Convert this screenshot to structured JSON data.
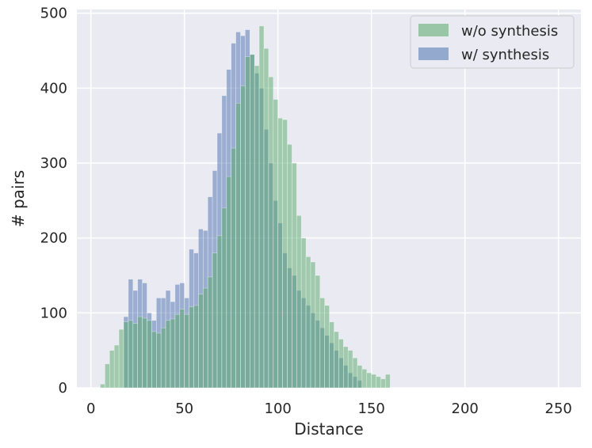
{
  "chart_data": {
    "type": "bar",
    "subtype": "overlapping-histogram",
    "xlabel": "Distance",
    "ylabel": "# pairs",
    "xlim": [
      -7.5,
      262
    ],
    "ylim": [
      0,
      505
    ],
    "xticks": [
      0,
      50,
      100,
      150,
      200,
      250
    ],
    "yticks": [
      0,
      100,
      200,
      300,
      400,
      500
    ],
    "grid": true,
    "legend_position": "top-right",
    "bin_start": 5,
    "bin_width": 2.5,
    "series": [
      {
        "name": "w/o synthesis",
        "color": "#55a868",
        "values": [
          5,
          32,
          50,
          57,
          78,
          88,
          90,
          86,
          95,
          93,
          90,
          75,
          73,
          80,
          90,
          92,
          98,
          105,
          98,
          108,
          110,
          125,
          133,
          148,
          180,
          203,
          240,
          282,
          320,
          380,
          403,
          442,
          445,
          430,
          483,
          453,
          415,
          385,
          360,
          358,
          325,
          300,
          230,
          200,
          175,
          168,
          150,
          120,
          110,
          88,
          75,
          65,
          55,
          50,
          40,
          30,
          25,
          20,
          18,
          15,
          12,
          18
        ]
      },
      {
        "name": "w/ synthesis",
        "color": "#4c72b0",
        "values": [
          0,
          0,
          0,
          0,
          0,
          95,
          145,
          130,
          145,
          140,
          100,
          90,
          120,
          120,
          130,
          115,
          138,
          140,
          120,
          185,
          180,
          212,
          210,
          255,
          290,
          340,
          390,
          425,
          460,
          475,
          470,
          478,
          445,
          420,
          400,
          345,
          300,
          250,
          220,
          180,
          160,
          150,
          130,
          120,
          110,
          100,
          90,
          80,
          70,
          60,
          50,
          40,
          30,
          20,
          15,
          10,
          0,
          0,
          0,
          0,
          0,
          0
        ]
      }
    ]
  }
}
